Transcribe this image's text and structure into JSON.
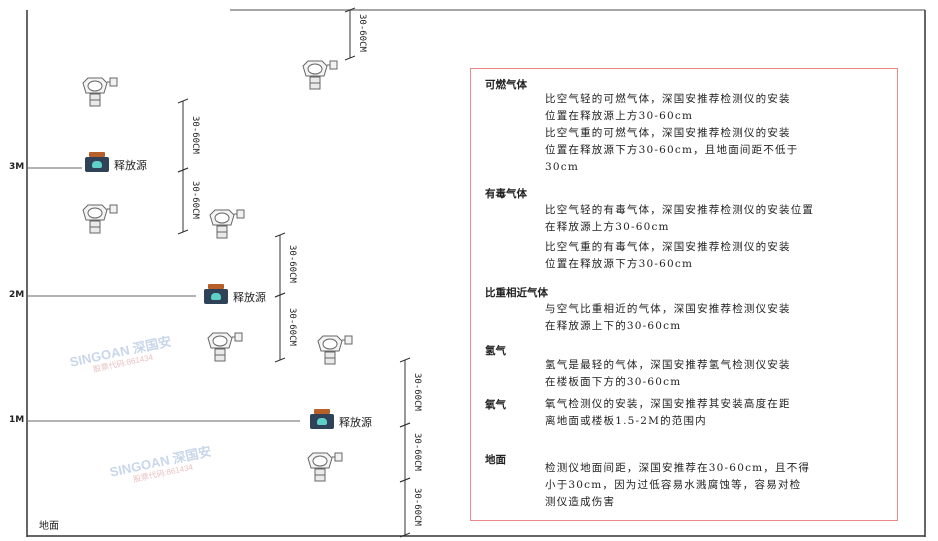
{
  "watermark": {
    "brand": "SINGOAN 深国安",
    "sub": "股票代码:861434"
  },
  "levels": [
    "3M",
    "2M",
    "1M"
  ],
  "floor_label": "地面",
  "source_label": "释放源",
  "dimension_label": "30-60CM",
  "colors": {
    "frame": "#333333",
    "level_line": "#555555",
    "box_border": "#ee8888",
    "source_cap": "#b8602a",
    "source_body": "#2f4257"
  },
  "notes": [
    {
      "heading": "可燃气体",
      "paragraphs": [
        "比空气轻的可燃气体，深国安推荐检测仪的安装\n位置在释放源上方30-60cm",
        "比空气重的可燃气体，深国安推荐检测仪的安装\n位置在释放源下方30-60cm，且地面间距不低于\n30cm"
      ]
    },
    {
      "heading": "有毒气体",
      "paragraphs": [
        "比空气轻的有毒气体，深国安推荐检测仪的安装位置\n在释放源上方30-60cm",
        "比空气重的有毒气体，深国安推荐检测仪的安装\n位置在释放源下方30-60cm"
      ]
    },
    {
      "heading": "比重相近气体",
      "paragraphs": [
        "与空气比重相近的气体，深国安推荐检测仪安装\n在释放源上下的30-60cm"
      ]
    },
    {
      "heading": "氢气",
      "paragraphs": [
        "氢气是最轻的气体，深国安推荐氢气检测仪安装\n在楼板面下方的30-60cm"
      ]
    },
    {
      "heading": "氧气",
      "paragraphs": [
        "氧气检测仪的安装，深国安推荐其安装高度在距\n离地面或楼板1.5-2M的范围内"
      ]
    },
    {
      "heading": "地面",
      "paragraphs": [
        "检测仪地面间距，深国安推荐在30-60cm，且不得\n小于30cm，因为过低容易水溅腐蚀等，容易对检\n测仪造成伤害"
      ]
    }
  ]
}
